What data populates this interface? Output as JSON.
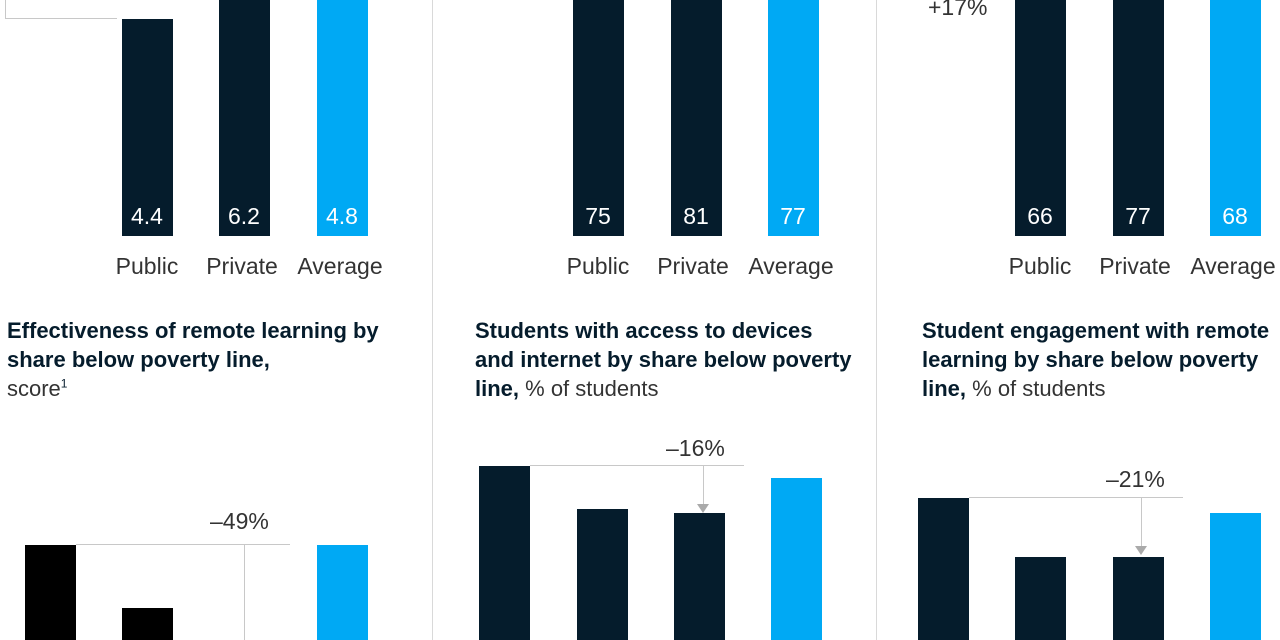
{
  "colors": {
    "dark": "#051c2c",
    "black": "#000000",
    "accent": "#00a9f4",
    "bracket": "#c8c8c8"
  },
  "chart_data": [
    {
      "type": "bar",
      "panel": "top-left",
      "categories": [
        "Public",
        "Private",
        "Average"
      ],
      "values": [
        4.4,
        6.2,
        4.8
      ],
      "value_labels": [
        "4.4",
        "6.2",
        "4.8"
      ]
    },
    {
      "type": "bar",
      "panel": "top-center",
      "categories": [
        "Public",
        "Private",
        "Average"
      ],
      "values": [
        75,
        81,
        77
      ],
      "value_labels": [
        "75",
        "81",
        "77"
      ]
    },
    {
      "type": "bar",
      "panel": "top-right",
      "categories": [
        "Public",
        "Private",
        "Average"
      ],
      "values": [
        66,
        77,
        68
      ],
      "value_labels": [
        "66",
        "77",
        "68"
      ],
      "annotation": "+17%"
    },
    {
      "type": "bar",
      "panel": "bottom-left",
      "title_bold": "Effectiveness of remote learning by share below poverty line,",
      "title_unit": "score",
      "title_footnote": "1",
      "values": [
        4.5,
        3.2,
        null,
        4.5
      ],
      "annotation": "–49%"
    },
    {
      "type": "bar",
      "panel": "bottom-center",
      "title_bold": "Students with access to devices and internet by share below poverty line,",
      "title_unit": "% of students",
      "values": [
        92,
        81,
        80,
        89
      ],
      "annotation": "–16%"
    },
    {
      "type": "bar",
      "panel": "bottom-right",
      "title_bold": "Student engagement with remote learning by share below poverty line,",
      "title_unit": "% of students",
      "values": [
        84,
        68,
        68,
        80
      ],
      "annotation": "–21%"
    }
  ]
}
